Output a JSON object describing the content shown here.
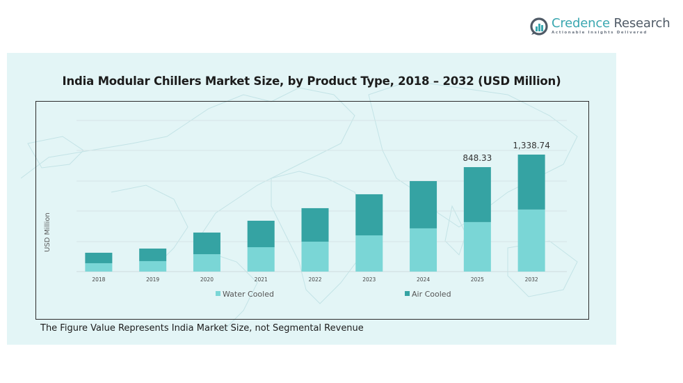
{
  "brand": {
    "name_part1": "Credence",
    "name_part2": "Research",
    "tagline": "Actionable Insights Delivered",
    "accent_color": "#3aa7b0"
  },
  "footnote": "The Figure Value Represents India Market Size, not Segmental Revenue",
  "chart_data": {
    "type": "bar",
    "stacked": true,
    "title": "India Modular Chillers Market Size, by Product Type, 2018 – 2032 (USD Million)",
    "xlabel": "",
    "ylabel": "USD Million",
    "categories": [
      "2018",
      "2019",
      "2020",
      "2021",
      "2022",
      "2023",
      "2024",
      "2025",
      "2032"
    ],
    "series": [
      {
        "name": "Water Cooled",
        "color": "#7ad6d6",
        "values": [
          68,
          85,
          141,
          198,
          243,
          294,
          351,
          402,
          710
        ]
      },
      {
        "name": "Air Cooled",
        "color": "#35a3a3",
        "values": [
          85,
          102,
          176,
          215,
          272,
          334,
          384,
          446.33,
          628.74
        ]
      }
    ],
    "totals_labels": [
      {
        "category": "2025",
        "label": "848.33"
      },
      {
        "category": "2032",
        "label": "1,338.74"
      }
    ],
    "ylim": [
      0,
      1500
    ],
    "grid": true,
    "y_tick_labels_visible": false,
    "legend_position": "bottom"
  }
}
